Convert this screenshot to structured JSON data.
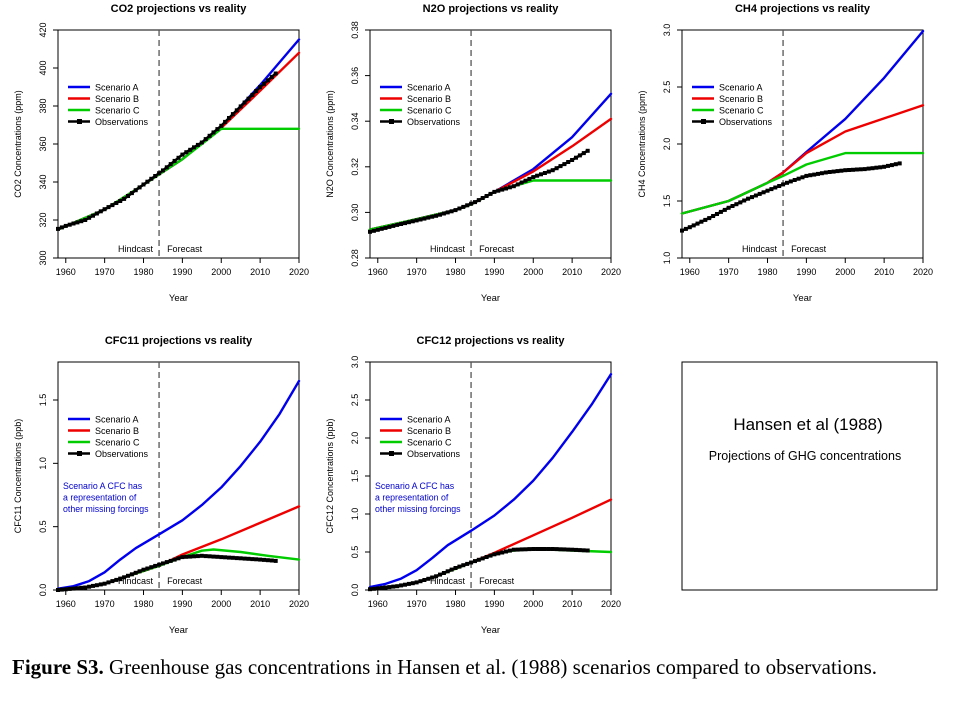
{
  "caption": {
    "label": "Figure S3.",
    "text": "Greenhouse gas concentrations in Hansen et al. (1988) scenarios compared to observations."
  },
  "info_box": {
    "title": "Hansen et al (1988)",
    "subtitle": "Projections of GHG concentrations"
  },
  "colors": {
    "scenario_a": "#0000ee",
    "scenario_b": "#ee0000",
    "scenario_c": "#00cc00",
    "observations": "#000000",
    "note": "#0000cc"
  },
  "chart_data": [
    {
      "id": "co2",
      "type": "line",
      "title": "CO2 projections vs reality",
      "xlabel": "Year",
      "ylabel": "CO2 Concentrations (ppm)",
      "xlim": [
        1958,
        2020
      ],
      "ylim": [
        300,
        420
      ],
      "xticks": [
        1960,
        1970,
        1980,
        1990,
        2000,
        2010,
        2020
      ],
      "yticks": [
        300,
        320,
        340,
        360,
        380,
        400,
        420
      ],
      "ytick_labels": [
        "300",
        "320",
        "340",
        "360",
        "380",
        "400",
        "420"
      ],
      "legend": [
        "Scenario A",
        "Scenario B",
        "Scenario C",
        "Observations"
      ],
      "legend_position": "top-left",
      "divider_year": 1984,
      "hindcast_label": "Hindcast",
      "forecast_label": "Forecast",
      "series": [
        {
          "name": "Scenario A",
          "x": [
            1958,
            1970,
            1980,
            1984,
            1990,
            2000,
            2010,
            2020
          ],
          "y": [
            315,
            325.5,
            338.5,
            344,
            352,
            369,
            391,
            415
          ]
        },
        {
          "name": "Scenario B",
          "x": [
            1958,
            1970,
            1980,
            1984,
            1990,
            2000,
            2010,
            2020
          ],
          "y": [
            315,
            325.5,
            338.5,
            344,
            352,
            368.5,
            388,
            408
          ]
        },
        {
          "name": "Scenario C",
          "x": [
            1958,
            1970,
            1980,
            1984,
            1990,
            2000,
            2020
          ],
          "y": [
            315,
            325.5,
            338.5,
            344,
            352,
            368,
            368
          ]
        },
        {
          "name": "Observations",
          "x": [
            1958,
            1960,
            1965,
            1970,
            1975,
            1980,
            1985,
            1990,
            1995,
            2000,
            2005,
            2010,
            2014
          ],
          "y": [
            315.3,
            316.9,
            320.0,
            325.7,
            331.1,
            338.7,
            346.1,
            354.4,
            360.8,
            369.6,
            379.8,
            389.9,
            397.1
          ]
        }
      ]
    },
    {
      "id": "n2o",
      "type": "line",
      "title": "N2O projections vs reality",
      "xlabel": "Year",
      "ylabel": "N2O Concentrations (ppm)",
      "xlim": [
        1958,
        2020
      ],
      "ylim": [
        0.28,
        0.38
      ],
      "xticks": [
        1960,
        1970,
        1980,
        1990,
        2000,
        2010,
        2020
      ],
      "yticks": [
        0.28,
        0.3,
        0.32,
        0.34,
        0.36,
        0.38
      ],
      "ytick_labels": [
        "0.28",
        "0.30",
        "0.32",
        "0.34",
        "0.36",
        "0.38"
      ],
      "legend": [
        "Scenario A",
        "Scenario B",
        "Scenario C",
        "Observations"
      ],
      "legend_position": "top-left",
      "divider_year": 1984,
      "hindcast_label": "Hindcast",
      "forecast_label": "Forecast",
      "series": [
        {
          "name": "Scenario A",
          "x": [
            1958,
            1970,
            1980,
            1984,
            1990,
            2000,
            2010,
            2020
          ],
          "y": [
            0.2925,
            0.297,
            0.301,
            0.3035,
            0.309,
            0.319,
            0.333,
            0.352
          ]
        },
        {
          "name": "Scenario B",
          "x": [
            1958,
            1970,
            1980,
            1984,
            1990,
            2000,
            2010,
            2020
          ],
          "y": [
            0.2925,
            0.297,
            0.301,
            0.3035,
            0.309,
            0.318,
            0.329,
            0.341
          ]
        },
        {
          "name": "Scenario C",
          "x": [
            1958,
            1970,
            1980,
            1984,
            1990,
            2000,
            2020
          ],
          "y": [
            0.2925,
            0.297,
            0.301,
            0.3035,
            0.309,
            0.314,
            0.314
          ]
        },
        {
          "name": "Observations",
          "x": [
            1958,
            1965,
            1970,
            1975,
            1980,
            1985,
            1990,
            1995,
            2000,
            2005,
            2010,
            2014
          ],
          "y": [
            0.2915,
            0.2945,
            0.2965,
            0.2985,
            0.301,
            0.3045,
            0.309,
            0.3115,
            0.3155,
            0.3185,
            0.323,
            0.327
          ]
        }
      ]
    },
    {
      "id": "ch4",
      "type": "line",
      "title": "CH4 projections vs reality",
      "xlabel": "Year",
      "ylabel": "CH4 Concentrations (ppm)",
      "xlim": [
        1958,
        2020
      ],
      "ylim": [
        1.0,
        3.0
      ],
      "xticks": [
        1960,
        1970,
        1980,
        1990,
        2000,
        2010,
        2020
      ],
      "yticks": [
        1.0,
        1.5,
        2.0,
        2.5,
        3.0
      ],
      "ytick_labels": [
        "1.0",
        "1.5",
        "2.0",
        "2.5",
        "3.0"
      ],
      "legend": [
        "Scenario A",
        "Scenario B",
        "Scenario C",
        "Observations"
      ],
      "legend_position": "top-left",
      "divider_year": 1984,
      "hindcast_label": "Hindcast",
      "forecast_label": "Forecast",
      "series": [
        {
          "name": "Scenario A",
          "x": [
            1958,
            1970,
            1980,
            1984,
            1990,
            2000,
            2010,
            2020
          ],
          "y": [
            1.39,
            1.5,
            1.66,
            1.75,
            1.93,
            2.22,
            2.58,
            2.99
          ]
        },
        {
          "name": "Scenario B",
          "x": [
            1958,
            1970,
            1980,
            1984,
            1990,
            2000,
            2020
          ],
          "y": [
            1.39,
            1.5,
            1.66,
            1.75,
            1.92,
            2.11,
            2.34
          ]
        },
        {
          "name": "Scenario C",
          "x": [
            1958,
            1970,
            1980,
            1984,
            1990,
            2000,
            2020
          ],
          "y": [
            1.39,
            1.5,
            1.66,
            1.72,
            1.82,
            1.92,
            1.92
          ]
        },
        {
          "name": "Observations",
          "x": [
            1958,
            1960,
            1965,
            1970,
            1975,
            1980,
            1985,
            1990,
            1995,
            2000,
            2005,
            2010,
            2014
          ],
          "y": [
            1.24,
            1.27,
            1.35,
            1.44,
            1.52,
            1.59,
            1.66,
            1.72,
            1.75,
            1.77,
            1.78,
            1.8,
            1.83
          ]
        }
      ]
    },
    {
      "id": "cfc11",
      "type": "line",
      "title": "CFC11 projections vs reality",
      "xlabel": "Year",
      "ylabel": "CFC11 Concentrations (ppb)",
      "xlim": [
        1958,
        2020
      ],
      "ylim": [
        0,
        1.8
      ],
      "xticks": [
        1960,
        1970,
        1980,
        1990,
        2000,
        2010,
        2020
      ],
      "yticks": [
        0,
        0.5,
        1.0,
        1.5
      ],
      "ytick_labels": [
        "0.0",
        "0.5",
        "1.0",
        "1.5"
      ],
      "legend": [
        "Scenario A",
        "Scenario B",
        "Scenario C",
        "Observations"
      ],
      "legend_position": "top-left",
      "divider_year": 1984,
      "hindcast_label": "Hindcast",
      "forecast_label": "Forecast",
      "note": [
        "Scenario A CFC has",
        "a representation of",
        "other missing forcings"
      ],
      "series": [
        {
          "name": "Scenario A",
          "x": [
            1958,
            1962,
            1966,
            1970,
            1974,
            1978,
            1984,
            1990,
            1995,
            2000,
            2005,
            2010,
            2015,
            2020
          ],
          "y": [
            0.01,
            0.03,
            0.07,
            0.14,
            0.24,
            0.33,
            0.44,
            0.55,
            0.67,
            0.81,
            0.98,
            1.17,
            1.39,
            1.65
          ]
        },
        {
          "name": "Scenario B",
          "x": [
            1958,
            1965,
            1970,
            1975,
            1980,
            1984,
            1990,
            2000,
            2010,
            2020
          ],
          "y": [
            0.0,
            0.02,
            0.05,
            0.1,
            0.15,
            0.19,
            0.28,
            0.4,
            0.53,
            0.66
          ]
        },
        {
          "name": "Scenario C",
          "x": [
            1958,
            1965,
            1970,
            1975,
            1980,
            1984,
            1990,
            1995,
            1998,
            2005,
            2012,
            2020
          ],
          "y": [
            0.0,
            0.02,
            0.05,
            0.1,
            0.15,
            0.19,
            0.26,
            0.31,
            0.32,
            0.3,
            0.27,
            0.24
          ]
        },
        {
          "name": "Observations",
          "x": [
            1958,
            1965,
            1970,
            1975,
            1980,
            1985,
            1990,
            1995,
            2000,
            2005,
            2010,
            2014
          ],
          "y": [
            0.0,
            0.02,
            0.05,
            0.1,
            0.16,
            0.21,
            0.26,
            0.27,
            0.26,
            0.25,
            0.24,
            0.23
          ]
        }
      ]
    },
    {
      "id": "cfc12",
      "type": "line",
      "title": "CFC12 projections vs reality",
      "xlabel": "Year",
      "ylabel": "CFC12 Concentrations (ppb)",
      "xlim": [
        1958,
        2020
      ],
      "ylim": [
        0,
        3.0
      ],
      "xticks": [
        1960,
        1970,
        1980,
        1990,
        2000,
        2010,
        2020
      ],
      "yticks": [
        0,
        0.5,
        1.0,
        1.5,
        2.0,
        2.5,
        3.0
      ],
      "ytick_labels": [
        "0.0",
        "0.5",
        "1.0",
        "1.5",
        "2.0",
        "2.5",
        "3.0"
      ],
      "legend": [
        "Scenario A",
        "Scenario B",
        "Scenario C",
        "Observations"
      ],
      "legend_position": "top-left",
      "divider_year": 1984,
      "hindcast_label": "Hindcast",
      "forecast_label": "Forecast",
      "note": [
        "Scenario A CFC has",
        "a representation of",
        "other missing forcings"
      ],
      "series": [
        {
          "name": "Scenario A",
          "x": [
            1958,
            1962,
            1966,
            1970,
            1974,
            1978,
            1984,
            1990,
            1995,
            2000,
            2005,
            2010,
            2015,
            2020
          ],
          "y": [
            0.04,
            0.08,
            0.15,
            0.26,
            0.42,
            0.59,
            0.78,
            0.98,
            1.19,
            1.44,
            1.74,
            2.08,
            2.44,
            2.84
          ]
        },
        {
          "name": "Scenario B",
          "x": [
            1958,
            1965,
            1970,
            1975,
            1980,
            1984,
            1990,
            2000,
            2010,
            2020
          ],
          "y": [
            0.01,
            0.05,
            0.1,
            0.18,
            0.28,
            0.36,
            0.49,
            0.72,
            0.95,
            1.19
          ]
        },
        {
          "name": "Scenario C",
          "x": [
            1958,
            1965,
            1970,
            1975,
            1980,
            1984,
            1990,
            1995,
            2000,
            2005,
            2010,
            2020
          ],
          "y": [
            0.01,
            0.05,
            0.1,
            0.18,
            0.28,
            0.36,
            0.47,
            0.52,
            0.54,
            0.53,
            0.52,
            0.5
          ]
        },
        {
          "name": "Observations",
          "x": [
            1958,
            1965,
            1970,
            1975,
            1980,
            1985,
            1990,
            1995,
            2000,
            2005,
            2010,
            2014
          ],
          "y": [
            0.01,
            0.05,
            0.1,
            0.18,
            0.29,
            0.38,
            0.47,
            0.53,
            0.54,
            0.54,
            0.53,
            0.52
          ]
        }
      ]
    }
  ]
}
